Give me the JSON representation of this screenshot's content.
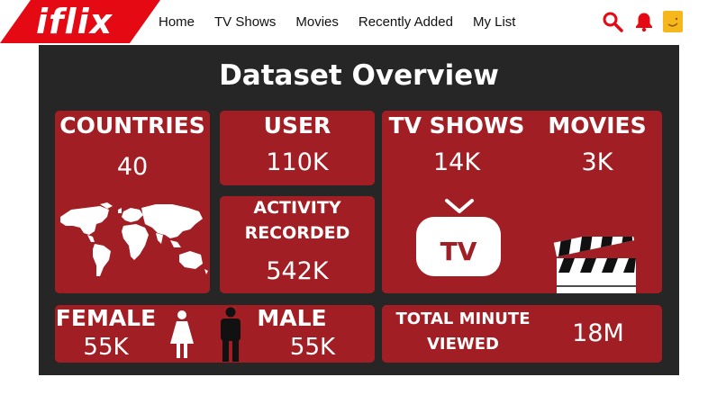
{
  "header": {
    "logo": "iflix",
    "nav": [
      "Home",
      "TV Shows",
      "Movies",
      "Recently Added",
      "My List"
    ],
    "icons": [
      "search-icon",
      "bell-icon",
      "avatar"
    ],
    "accent": "#e50914"
  },
  "dashboard": {
    "title": "Dataset Overview",
    "countries": {
      "label": "COUNTRIES",
      "value": "40"
    },
    "user": {
      "label": "USER",
      "value": "110K"
    },
    "activity": {
      "label_line1": "ACTIVITY",
      "label_line2": "RECORDED",
      "value": "542K"
    },
    "tv_shows": {
      "label": "TV SHOWS",
      "value": "14K",
      "badge": "TV"
    },
    "movies": {
      "label": "MOVIES",
      "value": "3K"
    },
    "female": {
      "label": "FEMALE",
      "value": "55K"
    },
    "male": {
      "label": "MALE",
      "value": "55K"
    },
    "minutes": {
      "label_line1": "TOTAL MINUTE",
      "label_line2": "VIEWED",
      "value": "18M"
    },
    "colors": {
      "panel": "#262626",
      "card": "#a11f24",
      "text": "#ffffff"
    }
  }
}
